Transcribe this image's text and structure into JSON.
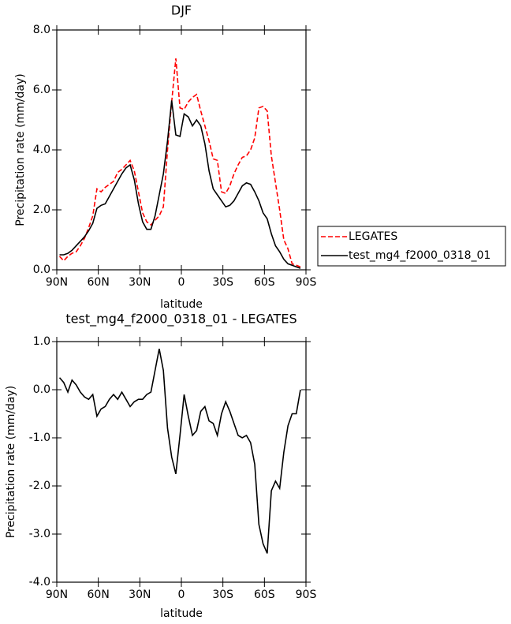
{
  "chart_data": [
    {
      "type": "line",
      "title": "DJF",
      "xlabel": "latitude",
      "ylabel": "Precipitation rate (mm/day)",
      "xlim": [
        90,
        -90
      ],
      "ylim": [
        0,
        8
      ],
      "xticks": [
        {
          "value": 90,
          "label": "90N"
        },
        {
          "value": 60,
          "label": "60N"
        },
        {
          "value": 30,
          "label": "30N"
        },
        0,
        {
          "value": -30,
          "label": "30S"
        },
        {
          "value": -60,
          "label": "60S"
        },
        {
          "value": -90,
          "label": "90S"
        }
      ],
      "yticks": [
        {
          "value": 0,
          "label": "0.0"
        },
        {
          "value": 2,
          "label": "2.0"
        },
        {
          "value": 4,
          "label": "4.0"
        },
        {
          "value": 6,
          "label": "6.0"
        },
        {
          "value": 8,
          "label": "8.0"
        }
      ],
      "x": [
        88,
        85,
        82,
        79,
        76,
        73,
        70,
        67,
        64,
        61,
        58,
        55,
        52,
        49,
        46,
        43,
        40,
        37,
        34,
        31,
        28,
        25,
        22,
        19,
        16,
        13,
        10,
        7,
        4,
        1,
        -2,
        -5,
        -8,
        -11,
        -14,
        -17,
        -20,
        -23,
        -26,
        -29,
        -32,
        -35,
        -38,
        -41,
        -44,
        -47,
        -50,
        -53,
        -56,
        -59,
        -62,
        -65,
        -68,
        -71,
        -74,
        -77,
        -80,
        -83,
        -86
      ],
      "legend": "outside-right",
      "series": [
        {
          "name": "LEGATES",
          "color": "#ff0000",
          "linestyle": "dashed",
          "values": [
            0.45,
            0.3,
            0.45,
            0.55,
            0.6,
            0.8,
            1.05,
            1.4,
            1.8,
            2.7,
            2.6,
            2.75,
            2.85,
            2.95,
            3.25,
            3.35,
            3.5,
            3.65,
            3.3,
            2.6,
            1.9,
            1.6,
            1.5,
            1.65,
            1.8,
            2.1,
            4.0,
            5.6,
            7.05,
            5.4,
            5.35,
            5.6,
            5.75,
            5.85,
            5.3,
            4.8,
            4.3,
            3.7,
            3.65,
            2.6,
            2.55,
            2.8,
            3.2,
            3.5,
            3.75,
            3.8,
            4.0,
            4.4,
            5.4,
            5.45,
            5.3,
            3.8,
            2.9,
            2.0,
            1.0,
            0.7,
            0.2,
            0.15,
            0.1
          ]
        },
        {
          "name": "test_mg4_f2000_0318_01",
          "color": "#000000",
          "linestyle": "solid",
          "values": [
            0.5,
            0.5,
            0.55,
            0.65,
            0.8,
            0.95,
            1.1,
            1.3,
            1.55,
            2.05,
            2.15,
            2.2,
            2.45,
            2.7,
            2.95,
            3.2,
            3.4,
            3.5,
            3.0,
            2.2,
            1.6,
            1.35,
            1.35,
            1.8,
            2.5,
            3.2,
            4.3,
            5.65,
            4.5,
            4.45,
            5.2,
            5.1,
            4.8,
            5.0,
            4.8,
            4.2,
            3.3,
            2.7,
            2.5,
            2.3,
            2.1,
            2.15,
            2.3,
            2.55,
            2.8,
            2.9,
            2.85,
            2.6,
            2.3,
            1.9,
            1.7,
            1.2,
            0.8,
            0.6,
            0.35,
            0.2,
            0.15,
            0.1,
            0.05
          ]
        }
      ]
    },
    {
      "type": "line",
      "title": "test_mg4_f2000_0318_01 - LEGATES",
      "xlabel": "latitude",
      "ylabel": "Precipitation rate (mm/day)",
      "xlim": [
        90,
        -90
      ],
      "ylim": [
        -4,
        1
      ],
      "xticks": [
        {
          "value": 90,
          "label": "90N"
        },
        {
          "value": 60,
          "label": "60N"
        },
        {
          "value": 30,
          "label": "30N"
        },
        0,
        {
          "value": -30,
          "label": "30S"
        },
        {
          "value": -60,
          "label": "60S"
        },
        {
          "value": -90,
          "label": "90S"
        }
      ],
      "yticks": [
        {
          "value": -4,
          "label": "-4.0"
        },
        {
          "value": -3,
          "label": "-3.0"
        },
        {
          "value": -2,
          "label": "-2.0"
        },
        {
          "value": -1,
          "label": "-1.0"
        },
        {
          "value": 0,
          "label": "0.0"
        },
        {
          "value": 1,
          "label": "1.0"
        }
      ],
      "x": [
        88,
        85,
        82,
        79,
        76,
        73,
        70,
        67,
        64,
        61,
        58,
        55,
        52,
        49,
        46,
        43,
        40,
        37,
        34,
        31,
        28,
        25,
        22,
        19,
        16,
        13,
        10,
        7,
        4,
        1,
        -2,
        -5,
        -8,
        -11,
        -14,
        -17,
        -20,
        -23,
        -26,
        -29,
        -32,
        -35,
        -38,
        -41,
        -44,
        -47,
        -50,
        -53,
        -56,
        -59,
        -62,
        -65,
        -68,
        -71,
        -74,
        -77,
        -80,
        -83,
        -86
      ],
      "series": [
        {
          "color": "#000000",
          "linestyle": "solid",
          "values": [
            0.25,
            0.15,
            -0.05,
            0.2,
            0.1,
            -0.05,
            -0.15,
            -0.2,
            -0.1,
            -0.55,
            -0.4,
            -0.35,
            -0.2,
            -0.1,
            -0.2,
            -0.05,
            -0.2,
            -0.35,
            -0.25,
            -0.2,
            -0.2,
            -0.1,
            -0.05,
            0.4,
            0.85,
            0.4,
            -0.8,
            -1.4,
            -1.75,
            -0.95,
            -0.1,
            -0.55,
            -0.95,
            -0.85,
            -0.45,
            -0.35,
            -0.65,
            -0.7,
            -0.95,
            -0.5,
            -0.25,
            -0.45,
            -0.7,
            -0.95,
            -1.0,
            -0.95,
            -1.1,
            -1.55,
            -2.8,
            -3.2,
            -3.4,
            -2.1,
            -1.9,
            -2.05,
            -1.3,
            -0.75,
            -0.5,
            -0.5,
            0.0
          ]
        }
      ]
    }
  ]
}
